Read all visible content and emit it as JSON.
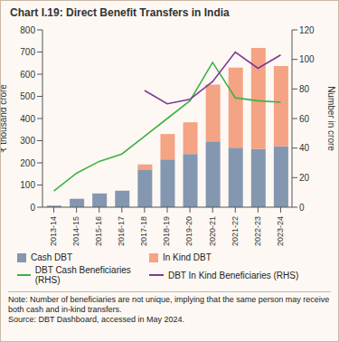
{
  "chart_data": {
    "type": "bar",
    "title": "Chart I.19: Direct Benefit Transfers in India",
    "y_label": "₹ thousand crore",
    "y2_label": "Number in crore",
    "categories": [
      "2013-14",
      "2014-15",
      "2015-16",
      "2016-17",
      "2017-18",
      "2018-19",
      "2019-20",
      "2020-21",
      "2021-22",
      "2022-23",
      "2023-24"
    ],
    "series": [
      {
        "name": "Cash DBT",
        "type": "bar",
        "color": "#8497b0",
        "values": [
          7,
          38,
          62,
          75,
          170,
          215,
          240,
          297,
          268,
          262,
          275
        ]
      },
      {
        "name": "In Kind DBT",
        "type": "bar",
        "color": "#f4a384",
        "values": [
          null,
          null,
          null,
          null,
          23,
          115,
          143,
          256,
          362,
          456,
          362
        ]
      },
      {
        "name": "DBT Cash Beneficiaries (RHS)",
        "type": "line",
        "axis": "y2",
        "color": "#3fb144",
        "values": [
          11,
          23,
          31,
          36,
          48,
          60,
          72,
          98,
          74,
          72,
          71
        ]
      },
      {
        "name": "DBT In Kind Beneficiaries (RHS)",
        "type": "line",
        "axis": "y2",
        "color": "#7b3a96",
        "values": [
          null,
          null,
          null,
          null,
          79,
          70,
          73,
          85,
          105,
          94,
          103
        ]
      }
    ],
    "ylim": [
      0,
      800
    ],
    "yticks": [
      0,
      100,
      200,
      300,
      400,
      500,
      600,
      700,
      800
    ],
    "y2lim": [
      0,
      120
    ],
    "y2ticks": [
      0,
      20,
      40,
      60,
      80,
      100,
      120
    ],
    "stacked": true,
    "grid": false,
    "legend": "bottom",
    "note": "Note: Number of beneficiaries are not unique, implying that the same person may receive both cash and in-kind transfers.",
    "source": "Source: DBT Dashboard, accessed in May 2024."
  }
}
